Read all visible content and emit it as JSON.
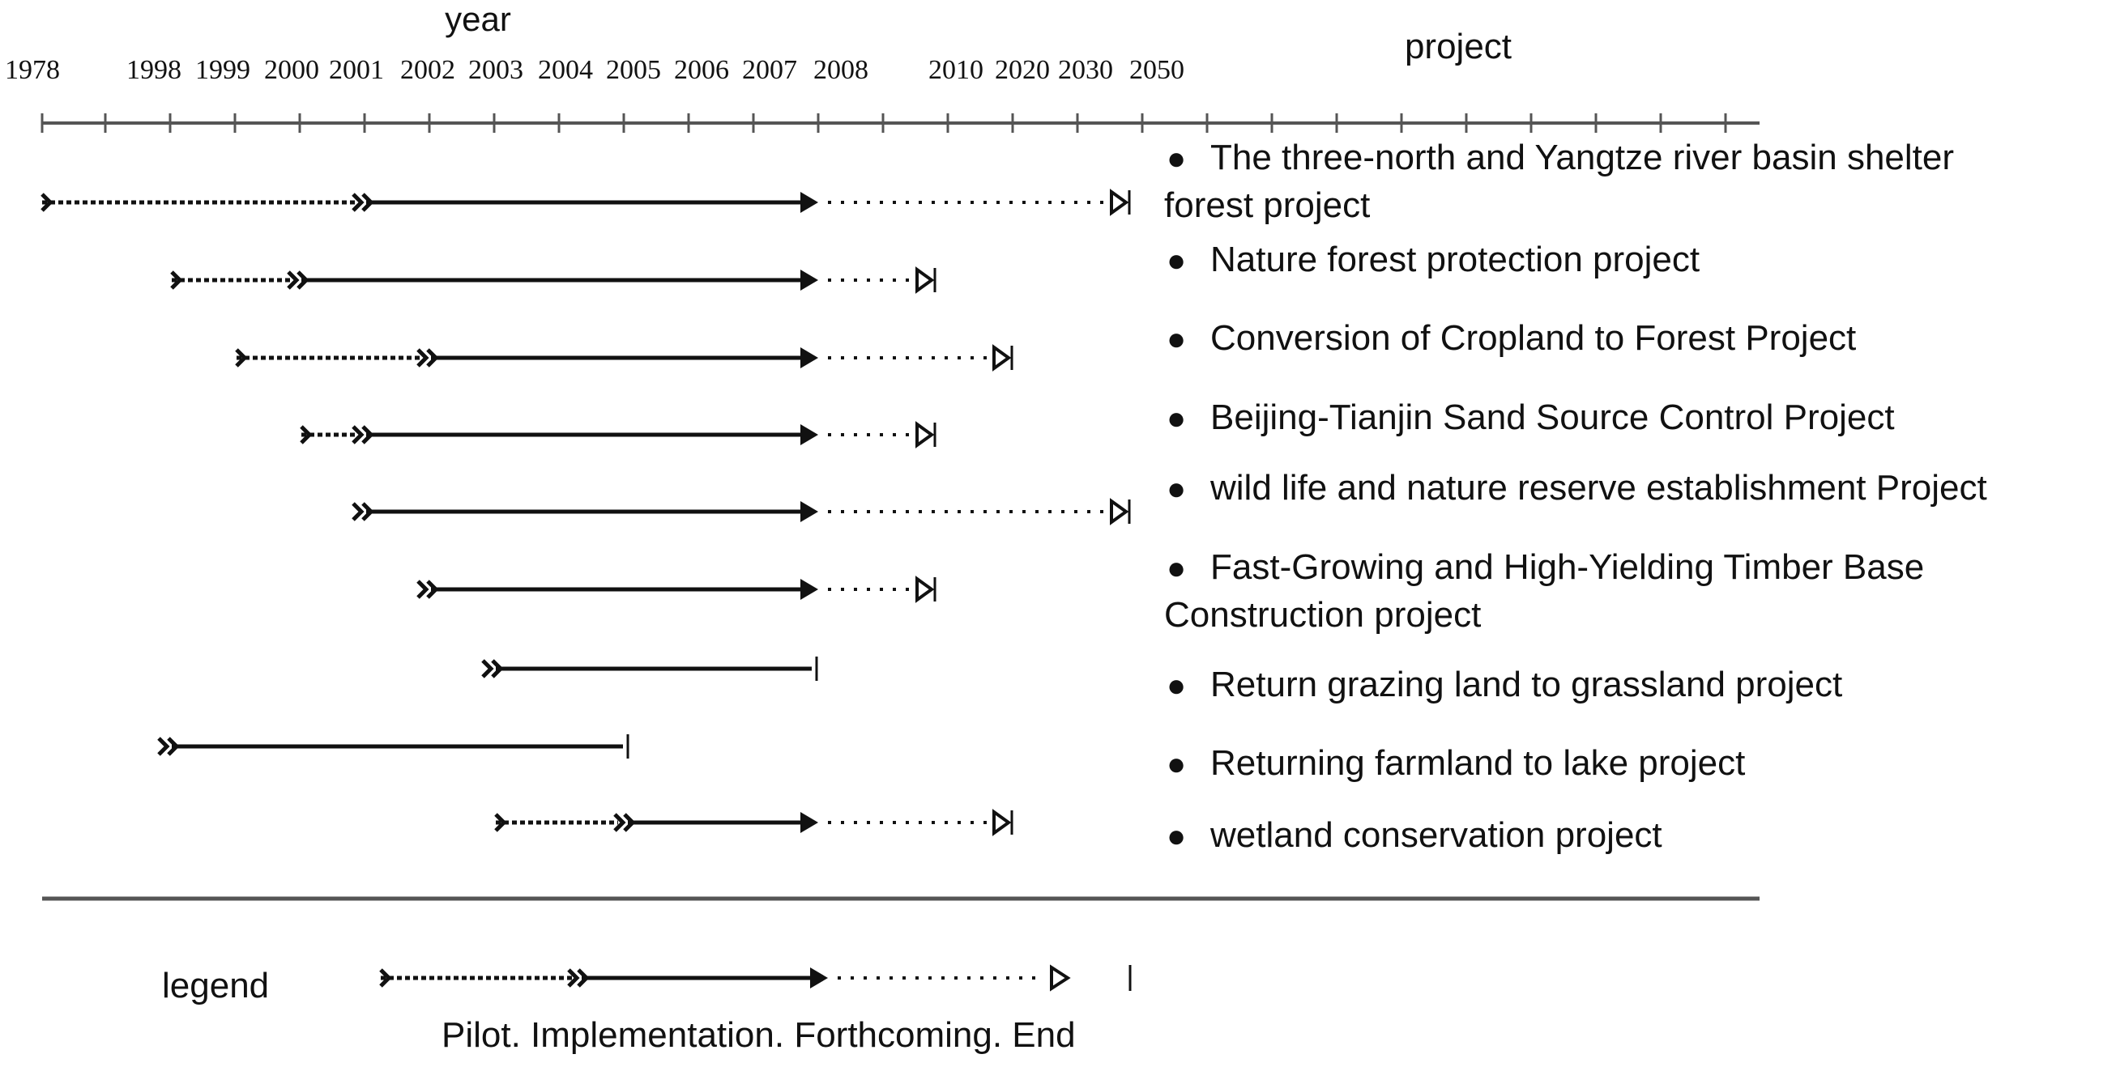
{
  "headers": {
    "year": "year",
    "project": "project"
  },
  "years": [
    "1978",
    "1998",
    "1999",
    "2000",
    "2001",
    "2002",
    "2003",
    "2004",
    "2005",
    "2006",
    "2007",
    "2008",
    "2010",
    "2020",
    "2030",
    "2050"
  ],
  "bullet": "●",
  "projects": [
    {
      "lines": [
        "The three-north and Yangtze river basin shelter",
        "forest project"
      ],
      "pilot_start": "1978",
      "impl_start": "2001",
      "forthcoming_start": "2008",
      "end": "2050"
    },
    {
      "lines": [
        "Nature forest protection project"
      ],
      "pilot_start": "1998",
      "impl_start": "2000",
      "forthcoming_start": "2008",
      "end": "2010"
    },
    {
      "lines": [
        "Conversion of Cropland to Forest Project"
      ],
      "pilot_start": "1999",
      "impl_start": "2002",
      "forthcoming_start": "2008",
      "end": "2020"
    },
    {
      "lines": [
        "Beijing-Tianjin Sand Source Control Project"
      ],
      "pilot_start": "2000",
      "impl_start": "2001",
      "forthcoming_start": "2008",
      "end": "2010"
    },
    {
      "lines": [
        "wild life and nature reserve establishment Project"
      ],
      "pilot_start": null,
      "impl_start": "2001",
      "forthcoming_start": "2008",
      "end": "2050"
    },
    {
      "lines": [
        "Fast-Growing and High-Yielding Timber Base",
        "Construction project"
      ],
      "pilot_start": null,
      "impl_start": "2002",
      "forthcoming_start": "2008",
      "end": "2010"
    },
    {
      "lines": [
        "Return grazing land to grassland project"
      ],
      "pilot_start": null,
      "impl_start": "2003",
      "forthcoming_start": null,
      "end": "2008"
    },
    {
      "lines": [
        "Returning farmland to lake project"
      ],
      "pilot_start": null,
      "impl_start": "1998",
      "forthcoming_start": null,
      "end": "2005"
    },
    {
      "lines": [
        "wetland conservation project"
      ],
      "pilot_start": "2003",
      "impl_start": "2005",
      "forthcoming_start": "2008",
      "end": "2020"
    }
  ],
  "legend": {
    "title": "legend",
    "caption": "Pilot. Implementation. Forthcoming. End"
  }
}
